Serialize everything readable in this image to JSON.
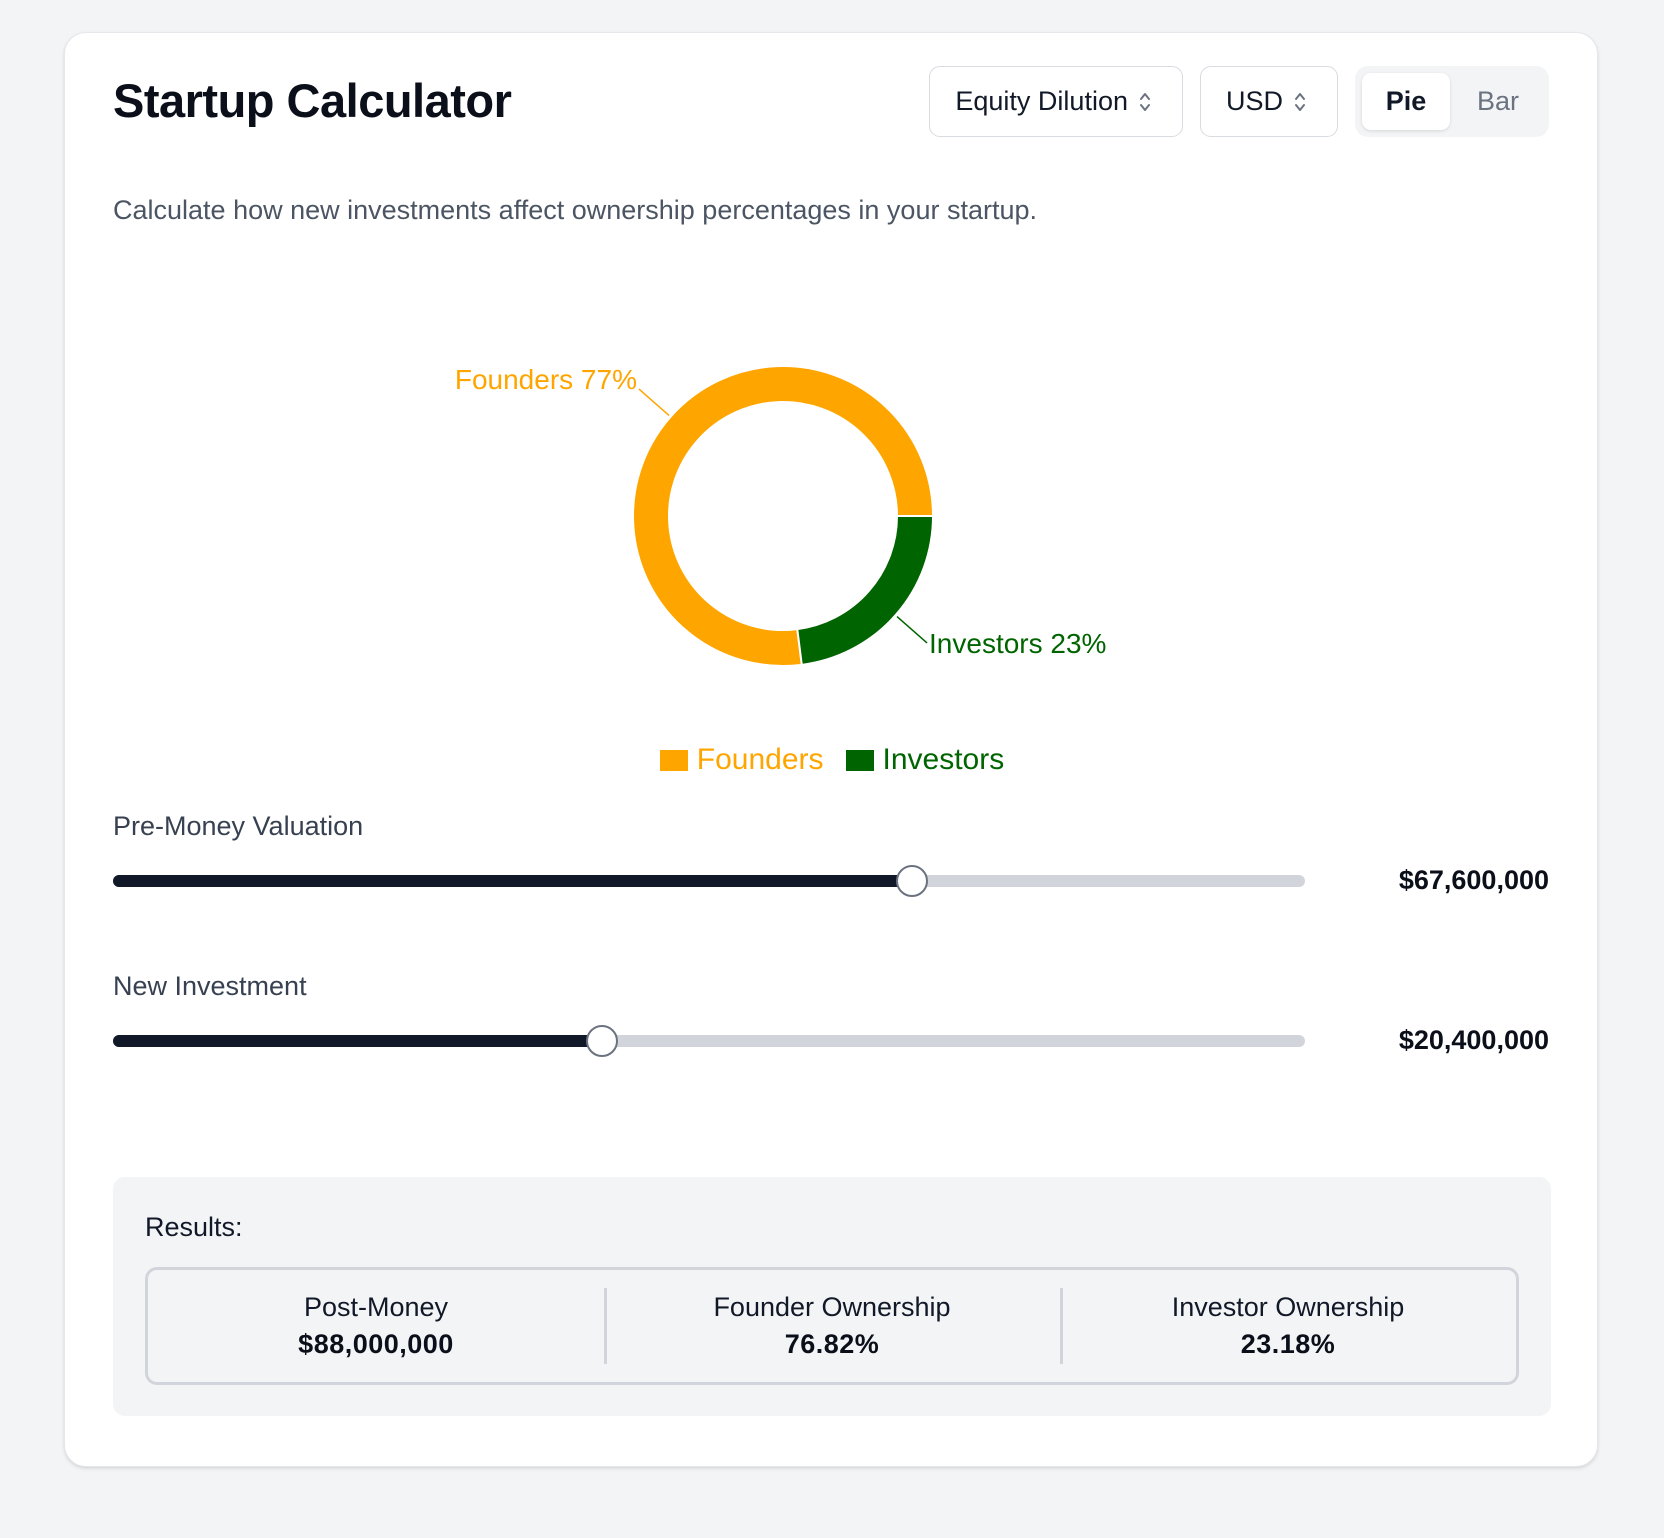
{
  "app": {
    "title": "Startup Calculator",
    "description": "Calculate how new investments affect ownership percentages in your startup."
  },
  "controls": {
    "calculator_select": "Equity Dilution",
    "currency_select": "USD",
    "view_toggle": {
      "options": [
        "Pie",
        "Bar"
      ],
      "active": "Pie"
    }
  },
  "chart_data": {
    "type": "pie",
    "variant": "donut",
    "categories": [
      "Founders",
      "Investors"
    ],
    "values": [
      77,
      23
    ],
    "labels": [
      "Founders 77%",
      "Investors 23%"
    ],
    "colors": [
      "#FFA500",
      "#006400"
    ],
    "legend": [
      "Founders",
      "Investors"
    ],
    "legend_position": "bottom"
  },
  "sliders": {
    "pre_money": {
      "label": "Pre-Money Valuation",
      "value": "$67,600,000",
      "fraction": 0.67
    },
    "investment": {
      "label": "New Investment",
      "value": "$20,400,000",
      "fraction": 0.41
    }
  },
  "results": {
    "title": "Results:",
    "post_money": {
      "label": "Post-Money",
      "value": "$88,000,000"
    },
    "founder": {
      "label": "Founder Ownership",
      "value": "76.82%"
    },
    "investor": {
      "label": "Investor Ownership",
      "value": "23.18%"
    }
  }
}
